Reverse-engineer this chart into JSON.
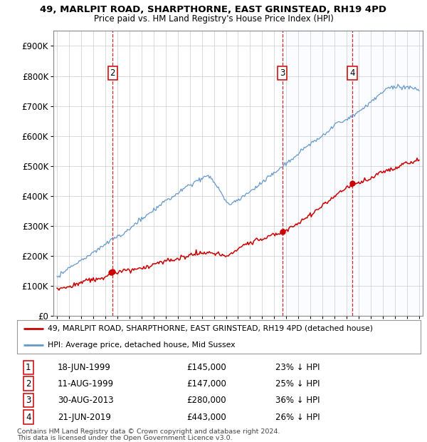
{
  "title1": "49, MARLPIT ROAD, SHARPTHORNE, EAST GRINSTEAD, RH19 4PD",
  "title2": "Price paid vs. HM Land Registry's House Price Index (HPI)",
  "ytick_labels": [
    "£0",
    "£100K",
    "£200K",
    "£300K",
    "£400K",
    "£500K",
    "£600K",
    "£700K",
    "£800K",
    "£900K"
  ],
  "yticks": [
    0,
    100000,
    200000,
    300000,
    400000,
    500000,
    600000,
    700000,
    800000,
    900000
  ],
  "ylim": [
    0,
    950000
  ],
  "xlim": [
    1994.7,
    2025.3
  ],
  "legend_line1": "49, MARLPIT ROAD, SHARPTHORNE, EAST GRINSTEAD, RH19 4PD (detached house)",
  "legend_line2": "HPI: Average price, detached house, Mid Sussex",
  "transactions": [
    {
      "num": 1,
      "date": "18-JUN-1999",
      "price": 145000,
      "pct": "23%",
      "year": 1999.46
    },
    {
      "num": 2,
      "date": "11-AUG-1999",
      "price": 147000,
      "pct": "25%",
      "year": 1999.61
    },
    {
      "num": 3,
      "date": "30-AUG-2013",
      "price": 280000,
      "pct": "36%",
      "year": 2013.66
    },
    {
      "num": 4,
      "date": "21-JUN-2019",
      "price": 443000,
      "pct": "26%",
      "year": 2019.47
    }
  ],
  "vline_nums": [
    2,
    3,
    4
  ],
  "shade_start": 2013.66,
  "footer1": "Contains HM Land Registry data © Crown copyright and database right 2024.",
  "footer2": "This data is licensed under the Open Government Licence v3.0.",
  "red_color": "#cc0000",
  "blue_color": "#6699cc",
  "shade_color": "#ddeeff",
  "bg_color": "#ffffff"
}
